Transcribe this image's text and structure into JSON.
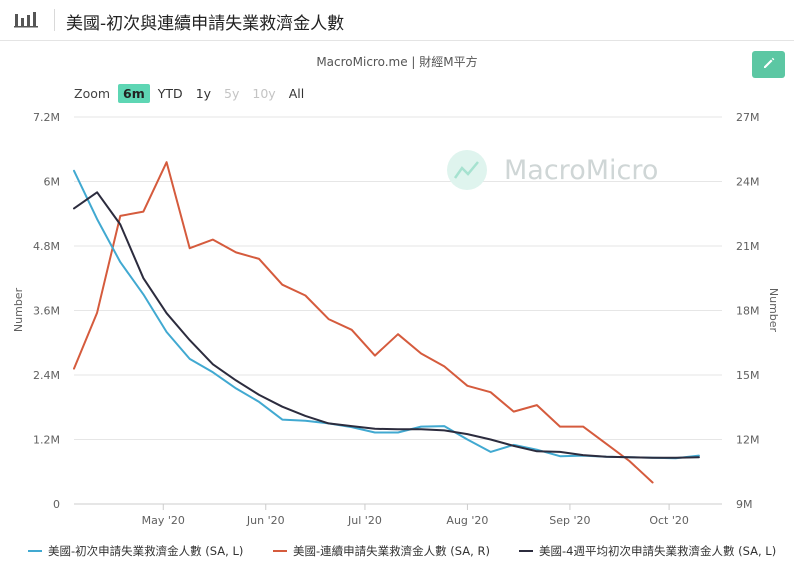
{
  "header": {
    "title": "美國-初次與連續申請失業救濟金人數"
  },
  "source": "MacroMicro.me | 財經M平方",
  "watermark": "MacroMicro",
  "zoom": {
    "label": "Zoom",
    "options": [
      {
        "label": "6m",
        "state": "active"
      },
      {
        "label": "YTD",
        "state": "normal"
      },
      {
        "label": "1y",
        "state": "normal"
      },
      {
        "label": "5y",
        "state": "disabled"
      },
      {
        "label": "10y",
        "state": "disabled"
      },
      {
        "label": "All",
        "state": "normal"
      }
    ]
  },
  "colors": {
    "initial": "#41a9d1",
    "continuing": "#d55b3d",
    "four_week": "#2c2c3e",
    "accent": "#5cc7a3"
  },
  "chart_data": {
    "type": "line",
    "x_type": "date",
    "x_range": [
      "2020-04-04",
      "2020-10-17"
    ],
    "x_ticks": [
      {
        "date": "2020-05-01",
        "label": "May '20"
      },
      {
        "date": "2020-06-01",
        "label": "Jun '20"
      },
      {
        "date": "2020-07-01",
        "label": "Jul '20"
      },
      {
        "date": "2020-08-01",
        "label": "Aug '20"
      },
      {
        "date": "2020-09-01",
        "label": "Sep '20"
      },
      {
        "date": "2020-10-01",
        "label": "Oct '20"
      }
    ],
    "y_left": {
      "label": "Number",
      "min": 0,
      "max": 7200000,
      "ticks": [
        0,
        1200000,
        2400000,
        3600000,
        4800000,
        6000000,
        7200000
      ],
      "tick_labels": [
        "0",
        "1.2M",
        "2.4M",
        "3.6M",
        "4.8M",
        "6M",
        "7.2M"
      ]
    },
    "y_right": {
      "label": "Number",
      "min": 9000000,
      "max": 27000000,
      "ticks": [
        9000000,
        12000000,
        15000000,
        18000000,
        21000000,
        24000000,
        27000000
      ],
      "tick_labels": [
        "9M",
        "12M",
        "15M",
        "18M",
        "21M",
        "24M",
        "27M"
      ]
    },
    "grid": true,
    "legend_position": "bottom",
    "series": [
      {
        "name": "美國-初次申請失業救濟金人數 (SA, L)",
        "axis": "left",
        "color": "#41a9d1",
        "points": [
          [
            "2020-04-04",
            6200000
          ],
          [
            "2020-04-11",
            5300000
          ],
          [
            "2020-04-18",
            4500000
          ],
          [
            "2020-04-25",
            3900000
          ],
          [
            "2020-05-02",
            3200000
          ],
          [
            "2020-05-09",
            2700000
          ],
          [
            "2020-05-16",
            2450000
          ],
          [
            "2020-05-23",
            2150000
          ],
          [
            "2020-05-30",
            1900000
          ],
          [
            "2020-06-06",
            1570000
          ],
          [
            "2020-06-13",
            1550000
          ],
          [
            "2020-06-20",
            1500000
          ],
          [
            "2020-06-27",
            1430000
          ],
          [
            "2020-07-04",
            1330000
          ],
          [
            "2020-07-11",
            1330000
          ],
          [
            "2020-07-18",
            1440000
          ],
          [
            "2020-07-25",
            1450000
          ],
          [
            "2020-08-01",
            1200000
          ],
          [
            "2020-08-08",
            970000
          ],
          [
            "2020-08-15",
            1100000
          ],
          [
            "2020-08-22",
            1010000
          ],
          [
            "2020-08-29",
            890000
          ],
          [
            "2020-09-05",
            900000
          ],
          [
            "2020-09-12",
            880000
          ],
          [
            "2020-09-19",
            870000
          ],
          [
            "2020-09-26",
            860000
          ],
          [
            "2020-10-03",
            850000
          ],
          [
            "2020-10-10",
            900000
          ]
        ]
      },
      {
        "name": "美國-連續申請失業救濟金人數 (SA, R)",
        "axis": "right",
        "color": "#d55b3d",
        "points": [
          [
            "2020-04-04",
            15300000
          ],
          [
            "2020-04-11",
            17900000
          ],
          [
            "2020-04-18",
            22400000
          ],
          [
            "2020-04-25",
            22600000
          ],
          [
            "2020-05-02",
            24900000
          ],
          [
            "2020-05-09",
            20900000
          ],
          [
            "2020-05-16",
            21300000
          ],
          [
            "2020-05-23",
            20700000
          ],
          [
            "2020-05-30",
            20400000
          ],
          [
            "2020-06-06",
            19200000
          ],
          [
            "2020-06-13",
            18700000
          ],
          [
            "2020-06-20",
            17600000
          ],
          [
            "2020-06-27",
            17100000
          ],
          [
            "2020-07-04",
            15900000
          ],
          [
            "2020-07-11",
            16900000
          ],
          [
            "2020-07-18",
            16000000
          ],
          [
            "2020-07-25",
            15400000
          ],
          [
            "2020-08-01",
            14500000
          ],
          [
            "2020-08-08",
            14200000
          ],
          [
            "2020-08-15",
            13300000
          ],
          [
            "2020-08-22",
            13600000
          ],
          [
            "2020-08-29",
            12600000
          ],
          [
            "2020-09-05",
            12600000
          ],
          [
            "2020-09-12",
            11800000
          ],
          [
            "2020-09-19",
            11000000
          ],
          [
            "2020-09-26",
            10000000
          ]
        ]
      },
      {
        "name": "美國-4週平均初次申請失業救濟金人數 (SA, L)",
        "axis": "left",
        "color": "#2c2c3e",
        "points": [
          [
            "2020-04-04",
            5500000
          ],
          [
            "2020-04-11",
            5800000
          ],
          [
            "2020-04-18",
            5200000
          ],
          [
            "2020-04-25",
            4200000
          ],
          [
            "2020-05-02",
            3550000
          ],
          [
            "2020-05-09",
            3050000
          ],
          [
            "2020-05-16",
            2600000
          ],
          [
            "2020-05-23",
            2300000
          ],
          [
            "2020-05-30",
            2030000
          ],
          [
            "2020-06-06",
            1810000
          ],
          [
            "2020-06-13",
            1640000
          ],
          [
            "2020-06-20",
            1500000
          ],
          [
            "2020-06-27",
            1450000
          ],
          [
            "2020-07-04",
            1400000
          ],
          [
            "2020-07-11",
            1390000
          ],
          [
            "2020-07-18",
            1390000
          ],
          [
            "2020-07-25",
            1370000
          ],
          [
            "2020-08-01",
            1300000
          ],
          [
            "2020-08-08",
            1200000
          ],
          [
            "2020-08-15",
            1080000
          ],
          [
            "2020-08-22",
            980000
          ],
          [
            "2020-08-29",
            970000
          ],
          [
            "2020-09-05",
            910000
          ],
          [
            "2020-09-12",
            880000
          ],
          [
            "2020-09-19",
            870000
          ],
          [
            "2020-09-26",
            860000
          ],
          [
            "2020-10-03",
            860000
          ],
          [
            "2020-10-10",
            870000
          ]
        ]
      }
    ]
  }
}
